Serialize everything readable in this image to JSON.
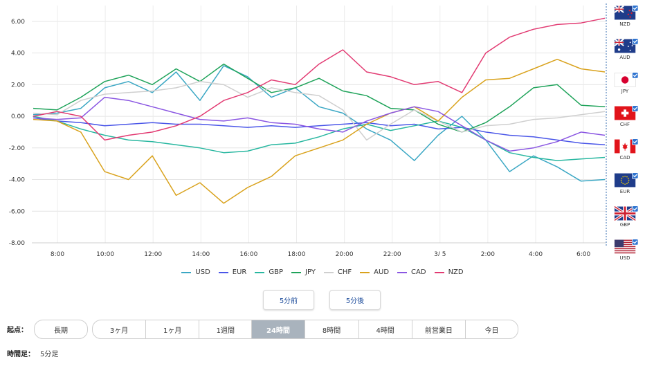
{
  "chart_data": {
    "type": "line",
    "title": "",
    "ylim": [
      -8.0,
      7.0
    ],
    "y_ticks": [
      "6.00",
      "4.00",
      "2.00",
      "0.00",
      "-2.00",
      "-4.00",
      "-6.00",
      "-8.00"
    ],
    "x_ticks": [
      "8:00",
      "10:00",
      "12:00",
      "14:00",
      "16:00",
      "18:00",
      "20:00",
      "22:00",
      "3/ 5",
      "2:00",
      "4:00",
      "6:00"
    ],
    "series": [
      {
        "name": "USD",
        "color": "#3aa7c4",
        "values": [
          0.1,
          0.2,
          0.5,
          1.8,
          2.2,
          1.5,
          2.8,
          1.0,
          3.2,
          2.5,
          1.2,
          1.8,
          0.6,
          0.2,
          -0.8,
          -1.5,
          -2.8,
          -1.2,
          0.0,
          -1.5,
          -3.5,
          -2.5,
          -3.2,
          -4.1,
          -4.0
        ]
      },
      {
        "name": "EUR",
        "color": "#4a56e8",
        "values": [
          -0.1,
          -0.3,
          -0.4,
          -0.6,
          -0.5,
          -0.4,
          -0.5,
          -0.5,
          -0.6,
          -0.7,
          -0.6,
          -0.7,
          -0.6,
          -0.5,
          -0.4,
          -0.6,
          -0.5,
          -0.8,
          -0.7,
          -1.0,
          -1.2,
          -1.3,
          -1.5,
          -1.7,
          -1.8
        ]
      },
      {
        "name": "GBP",
        "color": "#28b7a0",
        "values": [
          0.0,
          -0.3,
          -0.8,
          -1.2,
          -1.5,
          -1.6,
          -1.8,
          -2.0,
          -2.3,
          -2.2,
          -1.8,
          -1.7,
          -1.3,
          -0.8,
          -0.5,
          -0.9,
          -0.6,
          -0.3,
          -0.7,
          -1.5,
          -2.3,
          -2.6,
          -2.8,
          -2.7,
          -2.6
        ]
      },
      {
        "name": "JPY",
        "color": "#1fa35a",
        "values": [
          0.5,
          0.4,
          1.2,
          2.2,
          2.6,
          2.0,
          3.0,
          2.2,
          3.3,
          2.4,
          1.5,
          1.8,
          2.4,
          1.6,
          1.3,
          0.5,
          0.4,
          -0.5,
          -1.0,
          -0.4,
          0.6,
          1.8,
          2.0,
          0.7,
          0.6
        ]
      },
      {
        "name": "CHF",
        "color": "#cfcfcf",
        "values": [
          0.2,
          0.1,
          1.0,
          1.4,
          1.5,
          1.6,
          1.8,
          2.2,
          2.0,
          1.2,
          1.8,
          1.5,
          1.3,
          0.4,
          -1.5,
          -0.5,
          0.4,
          -0.3,
          -1.0,
          -0.6,
          -0.5,
          -0.2,
          -0.1,
          0.1,
          0.3
        ]
      },
      {
        "name": "AUD",
        "color": "#d9a21c",
        "values": [
          -0.2,
          -0.3,
          -1.0,
          -3.5,
          -4.0,
          -2.5,
          -5.0,
          -4.2,
          -5.5,
          -4.5,
          -3.8,
          -2.5,
          -2.0,
          -1.5,
          -0.5,
          0.2,
          0.6,
          -0.3,
          1.2,
          2.3,
          2.4,
          3.0,
          3.6,
          3.0,
          2.8
        ]
      },
      {
        "name": "CAD",
        "color": "#8a56e2",
        "values": [
          -0.1,
          -0.2,
          -0.1,
          1.2,
          1.0,
          0.6,
          0.2,
          -0.2,
          -0.3,
          -0.1,
          -0.4,
          -0.5,
          -0.8,
          -1.0,
          -0.3,
          0.2,
          0.6,
          0.3,
          -0.6,
          -1.5,
          -2.2,
          -2.0,
          -1.6,
          -1.0,
          -1.2
        ]
      },
      {
        "name": "NZD",
        "color": "#e23a72",
        "values": [
          0.0,
          0.3,
          0.0,
          -1.5,
          -1.2,
          -1.0,
          -0.6,
          0.0,
          1.0,
          1.5,
          2.3,
          2.0,
          3.3,
          4.2,
          2.8,
          2.5,
          2.0,
          2.2,
          1.5,
          4.0,
          5.0,
          5.5,
          5.8,
          5.9,
          6.2
        ]
      }
    ]
  },
  "legend": [
    "USD",
    "EUR",
    "GBP",
    "JPY",
    "CHF",
    "AUD",
    "CAD",
    "NZD"
  ],
  "flags": [
    {
      "code": "NZD"
    },
    {
      "code": "AUD"
    },
    {
      "code": "JPY"
    },
    {
      "code": "CHF"
    },
    {
      "code": "CAD"
    },
    {
      "code": "EUR"
    },
    {
      "code": "GBP"
    },
    {
      "code": "USD"
    }
  ],
  "controls": {
    "prev_5min": "5分前",
    "next_5min": "5分後",
    "origin_label": "起点：",
    "long_term": "長期",
    "periods": [
      "3ヶ月",
      "1ヶ月",
      "1週間",
      "24時間",
      "8時間",
      "4時間",
      "前営業日",
      "今日"
    ],
    "active_period": "24時間",
    "timeframe_label": "時間足：",
    "timeframe_value": "5分足"
  }
}
